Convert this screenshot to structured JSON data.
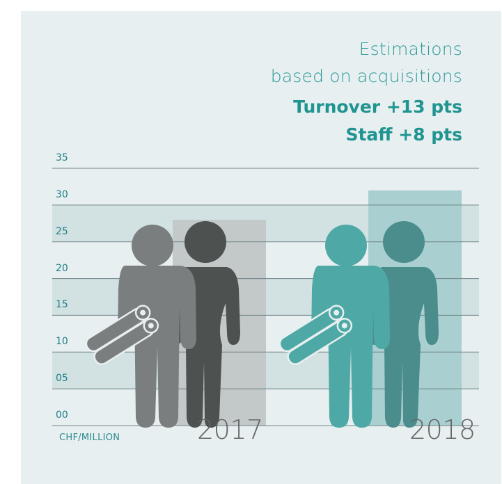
{
  "header": {
    "line1": "Estimations",
    "line2": "based on acquisitions",
    "line3": "Turnover +13 pts",
    "line4": "Staff +8 pts"
  },
  "colors": {
    "background": "#e8eff0",
    "teal_text": "#1f9490",
    "grid_band": "#d2e2e3",
    "gray_man": "#7b7e7e",
    "gray_woman": "#4d5150",
    "gray_bar": "#c3c8c8",
    "teal_man": "#4ea9a6",
    "teal_woman": "#4b8c8c",
    "teal_bar": "#a9cfd0"
  },
  "chart_data": {
    "type": "bar",
    "unit_label": "CHF/MILLION",
    "categories": [
      "2017",
      "2018"
    ],
    "values": [
      28,
      32
    ],
    "ylim": [
      0,
      35
    ],
    "yticks": [
      "00",
      "05",
      "10",
      "15",
      "20",
      "25",
      "30",
      "35"
    ],
    "grid": true,
    "pictograms": [
      {
        "year": "2017",
        "figures": [
          "man-holding-rolls-icon",
          "woman-icon"
        ],
        "color_man": "#7b7e7e",
        "color_woman": "#4d5150"
      },
      {
        "year": "2018",
        "figures": [
          "man-holding-rolls-icon",
          "woman-icon"
        ],
        "color_man": "#4ea9a6",
        "color_woman": "#4b8c8c"
      }
    ]
  }
}
